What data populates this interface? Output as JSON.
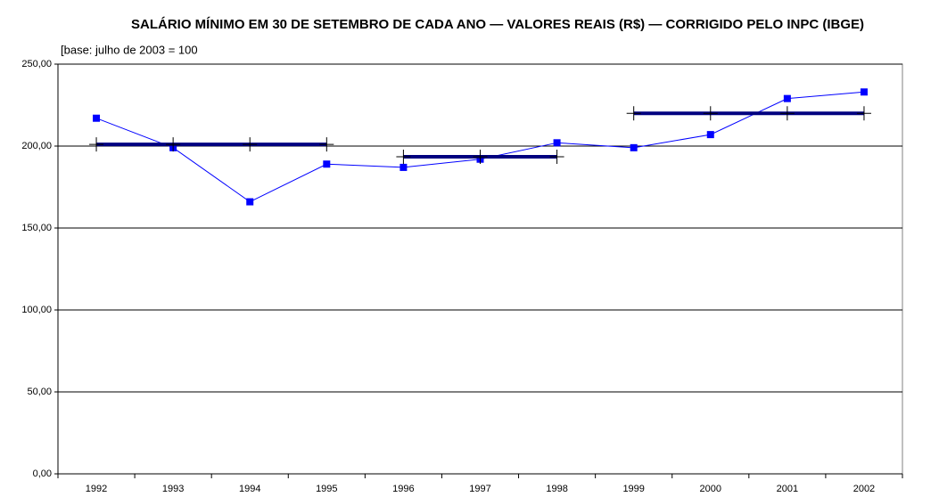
{
  "chart_data": {
    "type": "line",
    "title": "SALÁRIO MÍNIMO EM 30 DE SETEMBRO DE CADA ANO — VALORES REAIS (R$) — CORRIGIDO PELO INPC (IBGE)",
    "subtitle": "[base: julho de 2003 = 100",
    "categories": [
      "1992",
      "1993",
      "1994",
      "1995",
      "1996",
      "1997",
      "1998",
      "1999",
      "2000",
      "2001",
      "2002"
    ],
    "series": [
      {
        "color": "#0000ff",
        "marker": "square",
        "values": [
          217,
          199,
          166,
          189,
          187,
          192,
          202,
          199,
          207,
          229,
          233
        ]
      },
      {
        "color": "#000080",
        "marker": "plus",
        "values": [
          201,
          201,
          201,
          201,
          null,
          null,
          null,
          null,
          null,
          null,
          null
        ]
      },
      {
        "color": "#000080",
        "marker": "plus",
        "values": [
          null,
          null,
          null,
          null,
          193.5,
          193.5,
          193.5,
          null,
          null,
          null,
          null
        ]
      },
      {
        "color": "#000080",
        "marker": "plus",
        "values": [
          null,
          null,
          null,
          null,
          null,
          null,
          null,
          220,
          220,
          220,
          220
        ]
      }
    ],
    "ylim": [
      0,
      250
    ],
    "yticks": [
      {
        "value": 0,
        "label": "0,00"
      },
      {
        "value": 50,
        "label": "50,00"
      },
      {
        "value": 100,
        "label": "100,00"
      },
      {
        "value": 150,
        "label": "150,00"
      },
      {
        "value": 200,
        "label": "200,00"
      },
      {
        "value": 250,
        "label": "250,00"
      }
    ],
    "grid": true
  }
}
